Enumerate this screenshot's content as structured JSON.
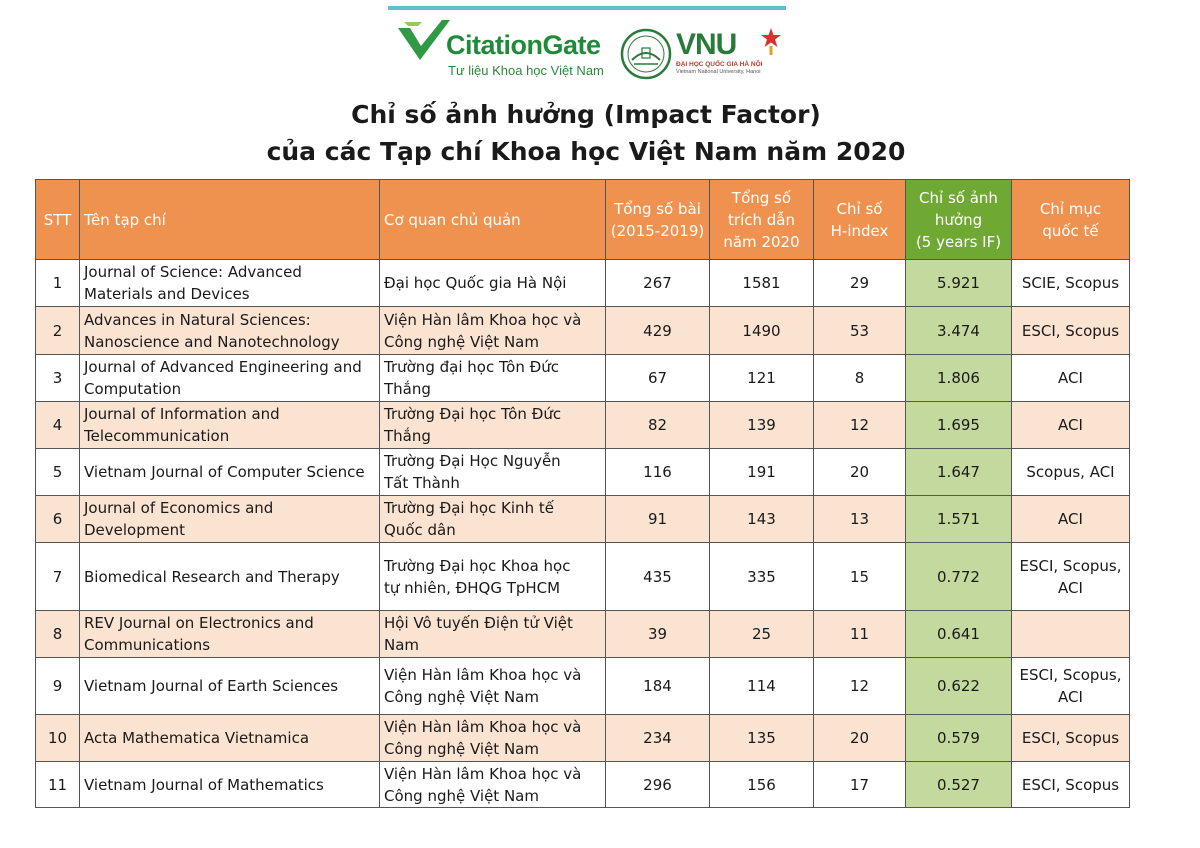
{
  "header": {
    "cg_name": "CitationGate",
    "cg_tagline": "Tư liệu Khoa học Việt Nam",
    "vnu_name": "VNU",
    "vnu_sub1": "ĐẠI HỌC QUỐC GIA HÀ NỘI",
    "vnu_sub2": "Vietnam National University, Hanoi",
    "colors": {
      "cg_green": "#1f8a3a",
      "vnu_green": "#2a7a3a",
      "star_red": "#d9322a",
      "header_orange": "#f0924f",
      "row_peach": "#fbe3d2",
      "if_green": "#c4d99d"
    }
  },
  "title": {
    "line1": "Chỉ số ảnh hưởng (Impact Factor)",
    "line2": "của các Tạp chí Khoa học Việt Nam năm 2020"
  },
  "table": {
    "headers": {
      "stt": "STT",
      "name": "Tên tạp chí",
      "org": "Cơ quan chủ quản",
      "articles_1": "Tổng số bài",
      "articles_2": "(2015-2019)",
      "cites_1": "Tổng số",
      "cites_2": "trích dẫn",
      "cites_3": "năm 2020",
      "h_1": "Chỉ số",
      "h_2": "H-index",
      "if_1": "Chỉ số ảnh",
      "if_2": "hưởng",
      "if_3": "(5 years IF)",
      "idx_1": "Chỉ mục",
      "idx_2": "quốc tế"
    },
    "rows": [
      {
        "stt": "1",
        "name_1": "Journal of Science: Advanced",
        "name_2": "Materials and Devices",
        "org_1": "Đại học Quốc gia Hà Nội",
        "org_2": "",
        "articles": "267",
        "cites": "1581",
        "h": "29",
        "if": "5.921",
        "idx_1": "SCIE, Scopus",
        "idx_2": ""
      },
      {
        "stt": "2",
        "name_1": "Advances in Natural Sciences:",
        "name_2": "Nanoscience and Nanotechnology",
        "org_1": "Viện Hàn lâm Khoa học và",
        "org_2": "Công nghệ Việt Nam",
        "articles": "429",
        "cites": "1490",
        "h": "53",
        "if": "3.474",
        "idx_1": "ESCI, Scopus",
        "idx_2": ""
      },
      {
        "stt": "3",
        "name_1": "Journal of Advanced Engineering  and",
        "name_2": "Computation",
        "org_1": "Trường đại học Tôn Đức",
        "org_2": "Thắng",
        "articles": "67",
        "cites": "121",
        "h": "8",
        "if": "1.806",
        "idx_1": "ACI",
        "idx_2": ""
      },
      {
        "stt": "4",
        "name_1": "Journal of Information and",
        "name_2": "Telecommunication",
        "org_1": "Trường Đại học Tôn Đức",
        "org_2": "Thắng",
        "articles": "82",
        "cites": "139",
        "h": "12",
        "if": "1.695",
        "idx_1": "ACI",
        "idx_2": ""
      },
      {
        "stt": "5",
        "name_1": "Vietnam Journal of Computer Science",
        "name_2": "",
        "org_1": "Trường Đại Học Nguyễn",
        "org_2": "Tất Thành",
        "articles": "116",
        "cites": "191",
        "h": "20",
        "if": "1.647",
        "idx_1": "Scopus, ACI",
        "idx_2": ""
      },
      {
        "stt": "6",
        "name_1": "Journal of Economics and",
        "name_2": "Development",
        "org_1": "Trường Đại học Kinh tế",
        "org_2": "Quốc dân",
        "articles": "91",
        "cites": "143",
        "h": "13",
        "if": "1.571",
        "idx_1": "ACI",
        "idx_2": ""
      },
      {
        "stt": "7",
        "name_1": "Biomedical Research and Therapy",
        "name_2": "",
        "org_1": "Trường Đại học Khoa học",
        "org_2": "tự nhiên, ĐHQG TpHCM",
        "articles": "435",
        "cites": "335",
        "h": "15",
        "if": "0.772",
        "idx_1": "ESCI, Scopus,",
        "idx_2": "ACI"
      },
      {
        "stt": "8",
        "name_1": "REV Journal on Electronics and",
        "name_2": "Communications",
        "org_1": "Hội Vô tuyến Điện tử Việt",
        "org_2": "Nam",
        "articles": "39",
        "cites": "25",
        "h": "11",
        "if": "0.641",
        "idx_1": "",
        "idx_2": ""
      },
      {
        "stt": "9",
        "name_1": "Vietnam Journal of Earth Sciences",
        "name_2": "",
        "org_1": "Viện Hàn lâm Khoa học và",
        "org_2": "Công nghệ Việt Nam",
        "articles": "184",
        "cites": "114",
        "h": "12",
        "if": "0.622",
        "idx_1": "ESCI, Scopus,",
        "idx_2": "ACI"
      },
      {
        "stt": "10",
        "name_1": "Acta Mathematica Vietnamica",
        "name_2": "",
        "org_1": "Viện Hàn lâm Khoa học và",
        "org_2": "Công nghệ Việt Nam",
        "articles": "234",
        "cites": "135",
        "h": "20",
        "if": "0.579",
        "idx_1": "ESCI, Scopus",
        "idx_2": ""
      },
      {
        "stt": "11",
        "name_1": "Vietnam Journal of Mathematics",
        "name_2": "",
        "org_1": "Viện Hàn lâm Khoa học và",
        "org_2": "Công nghệ Việt Nam",
        "articles": "296",
        "cites": "156",
        "h": "17",
        "if": "0.527",
        "idx_1": "ESCI, Scopus",
        "idx_2": ""
      }
    ]
  }
}
